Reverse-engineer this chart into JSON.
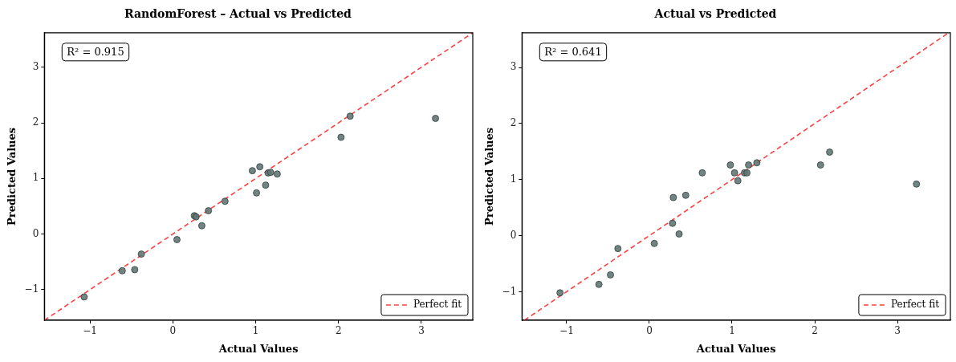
{
  "chart_data": [
    {
      "type": "scatter",
      "title": "RandomForest – Actual vs Predicted",
      "xlabel": "Actual Values",
      "ylabel": "Predicted Values",
      "xlim": [
        -1.55,
        3.62
      ],
      "ylim": [
        -1.55,
        3.62
      ],
      "xticks": [
        {
          "value": -1,
          "label": "−1"
        },
        0,
        1,
        2,
        3
      ],
      "yticks": [
        {
          "value": -1,
          "label": "−1"
        },
        0,
        1,
        2,
        3
      ],
      "grid": false,
      "legend": "bottom right",
      "annotations": [
        "R² = 0.915"
      ],
      "series": [
        {
          "color": "#5f7371",
          "marker": "circle",
          "x": [
            -1.07,
            -0.61,
            -0.46,
            -0.38,
            0.05,
            0.26,
            0.28,
            0.35,
            0.43,
            0.63,
            0.96,
            1.05,
            1.01,
            1.12,
            1.15,
            1.18,
            1.26,
            2.03,
            2.14,
            3.17
          ],
          "values": [
            -1.13,
            -0.66,
            -0.64,
            -0.36,
            -0.1,
            0.33,
            0.31,
            0.15,
            0.42,
            0.59,
            1.14,
            1.21,
            0.74,
            0.88,
            1.1,
            1.11,
            1.08,
            1.74,
            2.12,
            2.08
          ]
        },
        {
          "type": "line",
          "name": "Perfect fit",
          "color": "#ff4040",
          "marker": "none",
          "line_style": "dashed",
          "x": [
            -1.55,
            3.62
          ],
          "values": [
            -1.55,
            3.62
          ]
        }
      ]
    },
    {
      "type": "scatter",
      "title": "Actual vs Predicted",
      "xlabel": "Actual Values",
      "ylabel": "Predicted Values",
      "xlim": [
        -1.54,
        3.64
      ],
      "ylim": [
        -1.51,
        3.62
      ],
      "xticks": [
        {
          "value": -1,
          "label": "−1"
        },
        0,
        1,
        2,
        3
      ],
      "yticks": [
        {
          "value": -1,
          "label": "−1"
        },
        0,
        1,
        2,
        3
      ],
      "grid": false,
      "legend": "bottom right",
      "annotations": [
        "R² = 0.641"
      ],
      "series": [
        {
          "color": "#5f7371",
          "marker": "circle",
          "x": [
            -1.08,
            -0.61,
            -0.47,
            -0.38,
            0.06,
            0.28,
            0.29,
            0.36,
            0.44,
            0.64,
            0.98,
            1.03,
            1.07,
            1.15,
            1.18,
            1.2,
            1.3,
            2.07,
            2.18,
            3.23
          ],
          "values": [
            -1.02,
            -0.87,
            -0.7,
            -0.23,
            -0.14,
            0.22,
            0.68,
            0.03,
            0.72,
            1.12,
            1.26,
            1.12,
            0.98,
            1.12,
            1.12,
            1.26,
            1.3,
            1.26,
            1.49,
            0.92
          ]
        },
        {
          "type": "line",
          "name": "Perfect fit",
          "color": "#ff4040",
          "marker": "none",
          "line_style": "dashed",
          "x": [
            -1.51,
            3.62
          ],
          "values": [
            -1.51,
            3.62
          ]
        }
      ]
    }
  ]
}
